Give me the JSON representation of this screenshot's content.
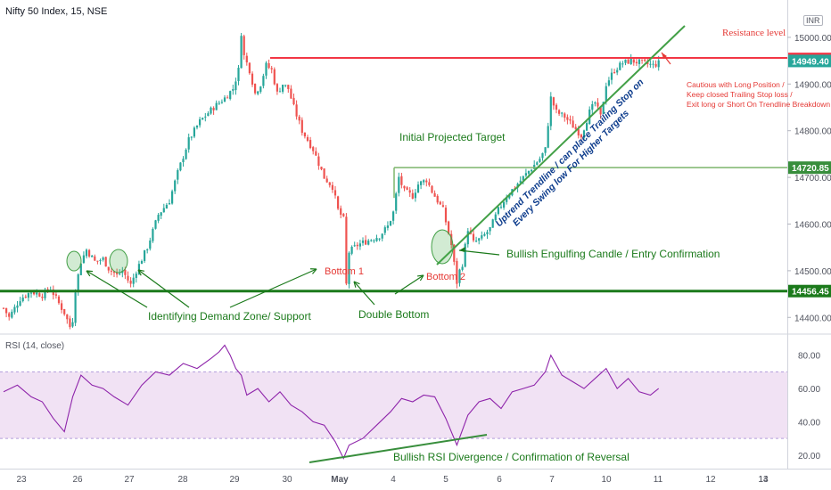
{
  "header": {
    "symbol": "Nifty 50 Index, 15, NSE",
    "currency": "INR"
  },
  "chart_data": [
    {
      "type": "candlestick",
      "title": "Nifty 50 Index, 15, NSE",
      "currency": "INR",
      "ylim": [
        14370,
        15080
      ],
      "y_ticks": [
        15000,
        14900,
        14800,
        14700,
        14600,
        14500,
        14400
      ],
      "x_ticks": [
        "23",
        "26",
        "27",
        "28",
        "29",
        "30",
        "May",
        "4",
        "5",
        "6",
        "7",
        "10",
        "11",
        "12",
        "13",
        "14"
      ],
      "bullish_color": "#26a69a",
      "bearish_color": "#ef5350",
      "price_labels": [
        {
          "value": 14953.8,
          "text": "14953.80",
          "color": "#f23645"
        },
        {
          "value": 14949.4,
          "text": "14949.40",
          "color": "#26a69a"
        },
        {
          "value": 14720.85,
          "text": "14720.85",
          "color": "#388e3c"
        },
        {
          "value": 14456.45,
          "text": "14456.45",
          "color": "#1b7a1b"
        }
      ],
      "levels": [
        {
          "value": 14956,
          "color": "#f23645",
          "label": "Resistance level"
        },
        {
          "value": 14720.85,
          "color": "#7cb56b",
          "label": "Initial Projected Target"
        },
        {
          "value": 14456.45,
          "color": "#1b7a1b",
          "label": ""
        }
      ],
      "candle_path": [
        [
          0,
          14420
        ],
        [
          2,
          14400
        ],
        [
          6,
          14440
        ],
        [
          10,
          14455
        ],
        [
          14,
          14448
        ],
        [
          17,
          14462
        ],
        [
          20,
          14430
        ],
        [
          22,
          14410
        ],
        [
          24,
          14380
        ],
        [
          25,
          14395
        ],
        [
          26,
          14460
        ],
        [
          28,
          14520
        ],
        [
          30,
          14545
        ],
        [
          33,
          14520
        ],
        [
          36,
          14525
        ],
        [
          38,
          14505
        ],
        [
          41,
          14490
        ],
        [
          43,
          14500
        ],
        [
          45,
          14480
        ],
        [
          46,
          14470
        ],
        [
          48,
          14500
        ],
        [
          52,
          14550
        ],
        [
          56,
          14620
        ],
        [
          60,
          14650
        ],
        [
          63,
          14710
        ],
        [
          67,
          14780
        ],
        [
          71,
          14820
        ],
        [
          76,
          14850
        ],
        [
          80,
          14870
        ],
        [
          83,
          14890
        ],
        [
          85,
          14930
        ],
        [
          86,
          15010
        ],
        [
          87,
          14960
        ],
        [
          89,
          14930
        ],
        [
          91,
          14880
        ],
        [
          93,
          14900
        ],
        [
          95,
          14940
        ],
        [
          97,
          14930
        ],
        [
          99,
          14880
        ],
        [
          101,
          14900
        ],
        [
          103,
          14890
        ],
        [
          105,
          14850
        ],
        [
          108,
          14800
        ],
        [
          112,
          14760
        ],
        [
          116,
          14700
        ],
        [
          119,
          14680
        ],
        [
          121,
          14630
        ],
        [
          123,
          14610
        ],
        [
          124,
          14470
        ],
        [
          125,
          14540
        ],
        [
          128,
          14555
        ],
        [
          132,
          14565
        ],
        [
          136,
          14575
        ],
        [
          139,
          14595
        ],
        [
          141,
          14625
        ],
        [
          143,
          14700
        ],
        [
          145,
          14670
        ],
        [
          148,
          14660
        ],
        [
          150,
          14685
        ],
        [
          153,
          14695
        ],
        [
          155,
          14670
        ],
        [
          157,
          14650
        ],
        [
          159,
          14630
        ],
        [
          161,
          14580
        ],
        [
          162,
          14555
        ],
        [
          164,
          14475
        ],
        [
          165,
          14500
        ],
        [
          166,
          14515
        ],
        [
          168,
          14590
        ],
        [
          170,
          14560
        ],
        [
          173,
          14570
        ],
        [
          176,
          14590
        ],
        [
          179,
          14630
        ],
        [
          182,
          14660
        ],
        [
          185,
          14680
        ],
        [
          188,
          14700
        ],
        [
          191,
          14720
        ],
        [
          194,
          14740
        ],
        [
          196,
          14760
        ],
        [
          198,
          14870
        ],
        [
          200,
          14840
        ],
        [
          203,
          14830
        ],
        [
          206,
          14810
        ],
        [
          209,
          14790
        ],
        [
          212,
          14840
        ],
        [
          214,
          14860
        ],
        [
          216,
          14830
        ],
        [
          218,
          14900
        ],
        [
          221,
          14930
        ],
        [
          224,
          14945
        ],
        [
          227,
          14950
        ],
        [
          231,
          14945
        ],
        [
          235,
          14940
        ],
        [
          237,
          14945
        ]
      ],
      "annotations": {
        "resistance": "Resistance level",
        "target": "Initial Projected Target",
        "trend_main": "Uptrend Trendline / can place Trailing Stop on",
        "trend_sub": "Every Swing low For Higher Targets",
        "cautious": [
          "Cautious with Long Position /",
          "Keep closed Trailing Stop loss /",
          "Exit long or Short On Trendline Breakdown"
        ],
        "engulfing": "Bullish Engulfing Candle / Entry Confirmation",
        "bottom1": "Bottom 1",
        "bottom2": "Bottom 2",
        "demand": "Identifying Demand Zone/ Support",
        "double": "Double Bottom"
      }
    },
    {
      "type": "line",
      "title": "RSI (14, close)",
      "ylim": [
        14,
        90
      ],
      "y_ticks": [
        80.0,
        60.0,
        40.0,
        20.0
      ],
      "band": [
        30,
        70
      ],
      "line_color": "#8e24aa",
      "band_color": "#e1bee7",
      "values": [
        [
          0,
          58
        ],
        [
          5,
          62
        ],
        [
          10,
          55
        ],
        [
          14,
          52
        ],
        [
          18,
          42
        ],
        [
          22,
          34
        ],
        [
          25,
          55
        ],
        [
          28,
          68
        ],
        [
          32,
          62
        ],
        [
          36,
          60
        ],
        [
          40,
          55
        ],
        [
          45,
          50
        ],
        [
          50,
          62
        ],
        [
          55,
          70
        ],
        [
          60,
          68
        ],
        [
          65,
          75
        ],
        [
          70,
          72
        ],
        [
          75,
          78
        ],
        [
          78,
          82
        ],
        [
          80,
          86
        ],
        [
          82,
          80
        ],
        [
          84,
          72
        ],
        [
          86,
          68
        ],
        [
          88,
          56
        ],
        [
          92,
          60
        ],
        [
          96,
          52
        ],
        [
          100,
          58
        ],
        [
          104,
          50
        ],
        [
          108,
          46
        ],
        [
          112,
          40
        ],
        [
          116,
          38
        ],
        [
          120,
          28
        ],
        [
          123,
          18
        ],
        [
          125,
          26
        ],
        [
          130,
          30
        ],
        [
          135,
          38
        ],
        [
          140,
          46
        ],
        [
          144,
          54
        ],
        [
          148,
          52
        ],
        [
          152,
          56
        ],
        [
          156,
          55
        ],
        [
          160,
          42
        ],
        [
          164,
          26
        ],
        [
          168,
          44
        ],
        [
          172,
          52
        ],
        [
          176,
          54
        ],
        [
          180,
          48
        ],
        [
          184,
          58
        ],
        [
          188,
          60
        ],
        [
          192,
          62
        ],
        [
          196,
          70
        ],
        [
          198,
          80
        ],
        [
          202,
          68
        ],
        [
          206,
          64
        ],
        [
          210,
          60
        ],
        [
          214,
          66
        ],
        [
          218,
          72
        ],
        [
          222,
          60
        ],
        [
          226,
          66
        ],
        [
          230,
          58
        ],
        [
          234,
          56
        ],
        [
          237,
          60
        ]
      ],
      "annotations": {
        "divergence": "Bullish RSI Divergence / Confirmation of Reversal"
      }
    }
  ]
}
